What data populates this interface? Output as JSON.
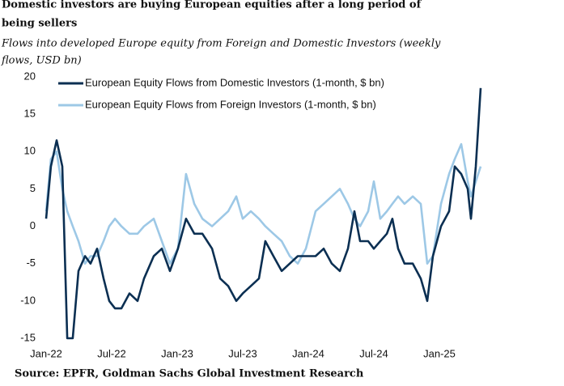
{
  "chart_data": {
    "type": "line",
    "title": [
      "Domestic investors are buying European equities after a long period of",
      "being sellers"
    ],
    "subtitle": [
      "Flows into developed Europe equity from Foreign and Domestic Investors (weekly",
      "flows, USD bn)"
    ],
    "source": "Source: EPFR, Goldman Sachs Global Investment Research",
    "x": [
      0,
      0.44,
      0.96,
      1.48,
      1.93,
      2.44,
      2.96,
      3.56,
      4.07,
      4.67,
      5.26,
      5.78,
      6.3,
      6.89,
      7.63,
      8.37,
      8.96,
      9.85,
      10.59,
      11.33,
      12.07,
      12.81,
      13.56,
      14.3,
      15.19,
      15.93,
      16.67,
      17.41,
      18,
      18.74,
      19.48,
      20.07,
      20.81,
      21.56,
      22.3,
      23.04,
      23.78,
      24.67,
      25.41,
      26.15,
      26.89,
      27.63,
      28.22,
      28.74,
      29.48,
      30,
      30.59,
      31.19,
      31.7,
      32.22,
      32.81,
      33.56,
      34.3,
      34.89,
      35.41,
      36.15,
      36.89,
      37.41,
      38,
      38.59,
      38.89,
      39.33,
      39.78
    ],
    "series": [
      {
        "name": "European Equity Flows from Domestic Investors (1-month, $ bn)",
        "color": "#0b2f52",
        "values": [
          1,
          8,
          11.5,
          8,
          -15,
          -15,
          -6,
          -4,
          -5,
          -3,
          -7,
          -10,
          -11,
          -11,
          -9,
          -10,
          -7,
          -4,
          -3,
          -6,
          -3,
          1,
          -1,
          -1,
          -3,
          -7,
          -8,
          -10,
          -9,
          -8,
          -7,
          -2,
          -4,
          -6,
          -5,
          -4,
          -4,
          -4,
          -3,
          -5,
          -6,
          -3,
          2,
          -2,
          -2,
          -3,
          -2,
          -1,
          1,
          -3,
          -5,
          -5,
          -7,
          -10,
          -4,
          0,
          2,
          8,
          7,
          5,
          1,
          8,
          18.5
        ]
      },
      {
        "name": "European Equity Flows from Foreign Investors (1-month, $ bn)",
        "color": "#9dc8e6",
        "values": [
          2,
          9,
          10,
          5,
          2,
          0,
          -2,
          -5,
          -4,
          -4,
          -2,
          0,
          1,
          0,
          -1,
          -1,
          0,
          1,
          -2,
          -5,
          -3,
          7,
          3,
          1,
          0,
          1,
          2,
          4,
          1,
          2,
          1,
          0,
          -1,
          -2,
          -4,
          -5,
          -3,
          2,
          3,
          4,
          5,
          3,
          1,
          0,
          2,
          6,
          1,
          2,
          3,
          4,
          3,
          4,
          3,
          -5,
          -4,
          3,
          7,
          9,
          11,
          6,
          4,
          6,
          8
        ]
      }
    ],
    "xlim": [
      0,
      40
    ],
    "xticks": [
      {
        "value": 0,
        "label": "Jan-22"
      },
      {
        "value": 6,
        "label": "Jul-22"
      },
      {
        "value": 12,
        "label": "Jan-23"
      },
      {
        "value": 18,
        "label": "Jul-23"
      },
      {
        "value": 24,
        "label": "Jan-24"
      },
      {
        "value": 30,
        "label": "Jul-24"
      },
      {
        "value": 36,
        "label": "Jan-25"
      }
    ],
    "ylim": [
      -15,
      20
    ],
    "yticks": [
      -15,
      -10,
      -5,
      0,
      5,
      10,
      15,
      20
    ],
    "grid": false,
    "legend": "upper-left"
  }
}
